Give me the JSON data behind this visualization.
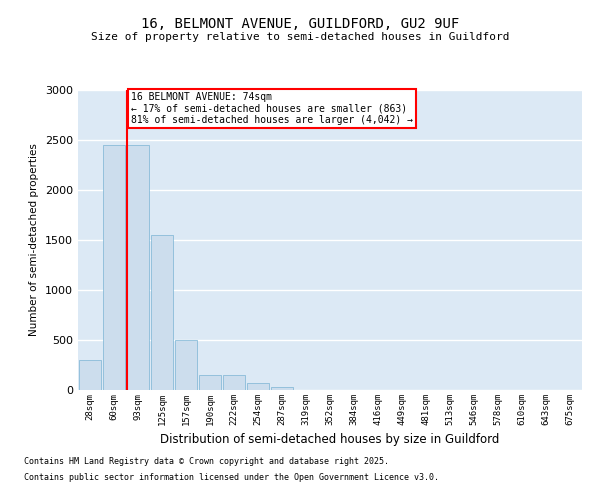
{
  "title1": "16, BELMONT AVENUE, GUILDFORD, GU2 9UF",
  "title2": "Size of property relative to semi-detached houses in Guildford",
  "xlabel": "Distribution of semi-detached houses by size in Guildford",
  "ylabel": "Number of semi-detached properties",
  "bar_color": "#ccdded",
  "bar_edge_color": "#7ab4d4",
  "background_color": "#dce9f5",
  "categories": [
    "28sqm",
    "60sqm",
    "93sqm",
    "125sqm",
    "157sqm",
    "190sqm",
    "222sqm",
    "254sqm",
    "287sqm",
    "319sqm",
    "352sqm",
    "384sqm",
    "416sqm",
    "449sqm",
    "481sqm",
    "513sqm",
    "546sqm",
    "578sqm",
    "610sqm",
    "643sqm",
    "675sqm"
  ],
  "values": [
    300,
    2450,
    2450,
    1550,
    500,
    150,
    150,
    70,
    30,
    5,
    3,
    2,
    1,
    1,
    0,
    0,
    0,
    0,
    0,
    0,
    0
  ],
  "ylim": [
    0,
    3000
  ],
  "yticks": [
    0,
    500,
    1000,
    1500,
    2000,
    2500,
    3000
  ],
  "property_line_x": 1.55,
  "annotation_title": "16 BELMONT AVENUE: 74sqm",
  "annotation_line1": "← 17% of semi-detached houses are smaller (863)",
  "annotation_line2": "81% of semi-detached houses are larger (4,042) →",
  "annotation_box_color": "white",
  "annotation_box_edge": "red",
  "footer1": "Contains HM Land Registry data © Crown copyright and database right 2025.",
  "footer2": "Contains public sector information licensed under the Open Government Licence v3.0."
}
